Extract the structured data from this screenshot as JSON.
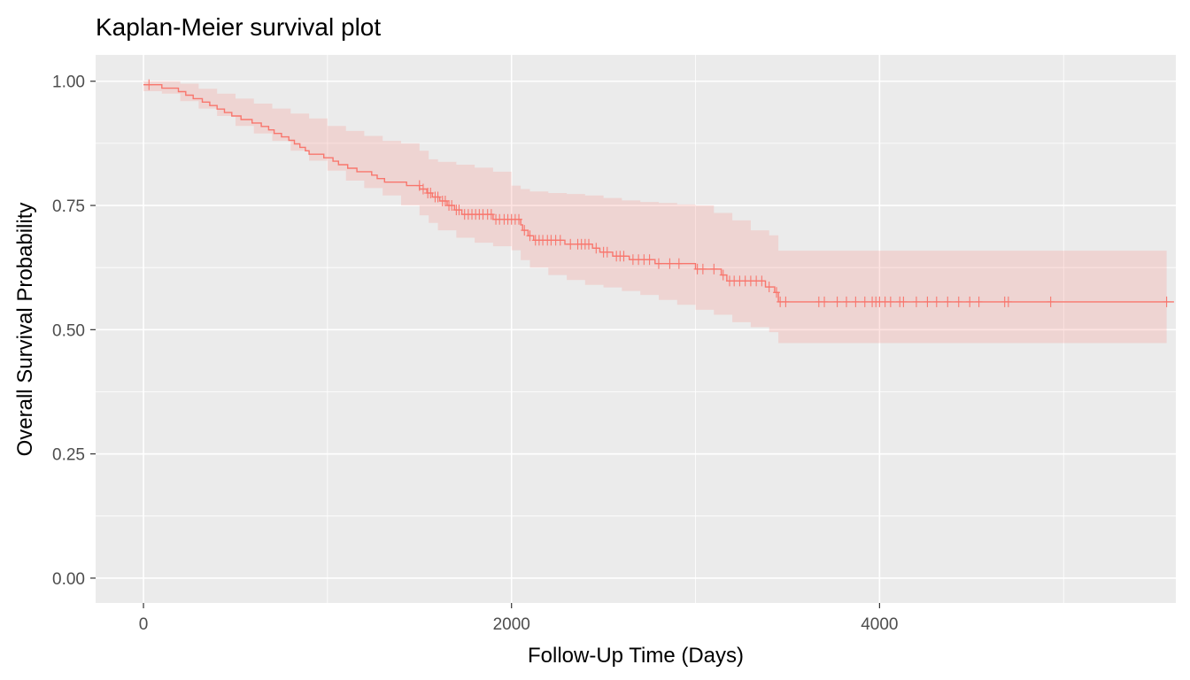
{
  "chart_data": {
    "type": "line",
    "subtype": "kaplan-meier step curve with confidence band and censor marks",
    "title": "Kaplan-Meier survival plot",
    "xlabel": "Follow-Up Time (Days)",
    "ylabel": "Overall Survival Probability",
    "xlim": [
      -260,
      5610
    ],
    "ylim": [
      -0.05,
      1.053
    ],
    "x_ticks": [
      0,
      2000,
      4000
    ],
    "x_tick_labels": [
      "0",
      "2000",
      "4000"
    ],
    "y_ticks": [
      0,
      0.25,
      0.5,
      0.75,
      1.0
    ],
    "y_tick_labels": [
      "0.00",
      "0.25",
      "0.50",
      "0.75",
      "1.00"
    ],
    "grid": true,
    "legend": "none",
    "colors": {
      "panel_background": "#ebebeb",
      "grid_major": "#ffffff",
      "curve": "#f8766d",
      "band": "#f8766d",
      "tick_text": "#4d4d4d"
    },
    "survival_curve": [
      [
        0,
        0.993
      ],
      [
        100,
        0.993
      ],
      [
        100,
        0.986
      ],
      [
        190,
        0.986
      ],
      [
        190,
        0.979
      ],
      [
        230,
        0.979
      ],
      [
        230,
        0.972
      ],
      [
        270,
        0.972
      ],
      [
        270,
        0.965
      ],
      [
        320,
        0.965
      ],
      [
        320,
        0.958
      ],
      [
        360,
        0.958
      ],
      [
        360,
        0.951
      ],
      [
        400,
        0.951
      ],
      [
        400,
        0.944
      ],
      [
        440,
        0.944
      ],
      [
        440,
        0.937
      ],
      [
        480,
        0.937
      ],
      [
        480,
        0.93
      ],
      [
        530,
        0.93
      ],
      [
        530,
        0.923
      ],
      [
        590,
        0.923
      ],
      [
        590,
        0.916
      ],
      [
        640,
        0.916
      ],
      [
        640,
        0.909
      ],
      [
        680,
        0.909
      ],
      [
        680,
        0.902
      ],
      [
        710,
        0.902
      ],
      [
        710,
        0.895
      ],
      [
        750,
        0.895
      ],
      [
        750,
        0.888
      ],
      [
        790,
        0.888
      ],
      [
        790,
        0.881
      ],
      [
        820,
        0.881
      ],
      [
        820,
        0.874
      ],
      [
        850,
        0.874
      ],
      [
        850,
        0.867
      ],
      [
        880,
        0.867
      ],
      [
        880,
        0.86
      ],
      [
        900,
        0.86
      ],
      [
        900,
        0.853
      ],
      [
        980,
        0.853
      ],
      [
        980,
        0.846
      ],
      [
        1030,
        0.846
      ],
      [
        1030,
        0.839
      ],
      [
        1060,
        0.839
      ],
      [
        1060,
        0.832
      ],
      [
        1110,
        0.832
      ],
      [
        1110,
        0.825
      ],
      [
        1160,
        0.825
      ],
      [
        1160,
        0.818
      ],
      [
        1240,
        0.818
      ],
      [
        1240,
        0.811
      ],
      [
        1270,
        0.811
      ],
      [
        1270,
        0.804
      ],
      [
        1310,
        0.804
      ],
      [
        1310,
        0.797
      ],
      [
        1430,
        0.797
      ],
      [
        1430,
        0.79
      ],
      [
        1500,
        0.79
      ],
      [
        1500,
        0.783
      ],
      [
        1540,
        0.783
      ],
      [
        1540,
        0.775
      ],
      [
        1570,
        0.775
      ],
      [
        1570,
        0.767
      ],
      [
        1610,
        0.767
      ],
      [
        1610,
        0.759
      ],
      [
        1650,
        0.759
      ],
      [
        1650,
        0.75
      ],
      [
        1690,
        0.75
      ],
      [
        1690,
        0.741
      ],
      [
        1730,
        0.741
      ],
      [
        1730,
        0.732
      ],
      [
        1900,
        0.732
      ],
      [
        1900,
        0.722
      ],
      [
        2050,
        0.722
      ],
      [
        2050,
        0.711
      ],
      [
        2060,
        0.711
      ],
      [
        2060,
        0.7
      ],
      [
        2090,
        0.7
      ],
      [
        2090,
        0.689
      ],
      [
        2120,
        0.689
      ],
      [
        2120,
        0.68
      ],
      [
        2290,
        0.68
      ],
      [
        2290,
        0.672
      ],
      [
        2440,
        0.672
      ],
      [
        2440,
        0.664
      ],
      [
        2480,
        0.664
      ],
      [
        2480,
        0.656
      ],
      [
        2550,
        0.656
      ],
      [
        2550,
        0.648
      ],
      [
        2640,
        0.648
      ],
      [
        2640,
        0.641
      ],
      [
        2780,
        0.641
      ],
      [
        2780,
        0.633
      ],
      [
        3000,
        0.633
      ],
      [
        3000,
        0.622
      ],
      [
        3140,
        0.622
      ],
      [
        3140,
        0.61
      ],
      [
        3170,
        0.61
      ],
      [
        3170,
        0.598
      ],
      [
        3380,
        0.598
      ],
      [
        3380,
        0.586
      ],
      [
        3430,
        0.586
      ],
      [
        3430,
        0.575
      ],
      [
        3450,
        0.575
      ],
      [
        3450,
        0.556
      ],
      [
        5600,
        0.556
      ]
    ],
    "confidence_band": {
      "x": [
        0,
        100,
        200,
        300,
        400,
        500,
        600,
        700,
        800,
        900,
        1000,
        1100,
        1200,
        1300,
        1400,
        1500,
        1550,
        1600,
        1700,
        1800,
        1900,
        2000,
        2050,
        2100,
        2200,
        2300,
        2400,
        2500,
        2600,
        2700,
        2800,
        2900,
        3000,
        3100,
        3200,
        3300,
        3400,
        3450,
        5560
      ],
      "upper": [
        1.0,
        1.0,
        0.995,
        0.985,
        0.975,
        0.965,
        0.955,
        0.945,
        0.935,
        0.925,
        0.91,
        0.9,
        0.89,
        0.88,
        0.875,
        0.86,
        0.843,
        0.838,
        0.832,
        0.826,
        0.818,
        0.79,
        0.783,
        0.778,
        0.775,
        0.773,
        0.77,
        0.765,
        0.76,
        0.757,
        0.755,
        0.752,
        0.75,
        0.735,
        0.72,
        0.7,
        0.69,
        0.659,
        0.659
      ],
      "lower": [
        0.98,
        0.975,
        0.96,
        0.945,
        0.93,
        0.91,
        0.895,
        0.88,
        0.86,
        0.84,
        0.82,
        0.8,
        0.785,
        0.77,
        0.75,
        0.73,
        0.715,
        0.7,
        0.685,
        0.675,
        0.668,
        0.66,
        0.64,
        0.625,
        0.61,
        0.6,
        0.59,
        0.585,
        0.578,
        0.57,
        0.56,
        0.55,
        0.54,
        0.53,
        0.515,
        0.505,
        0.495,
        0.473,
        0.473
      ]
    },
    "censor_marks": [
      [
        30,
        0.993
      ],
      [
        1500,
        0.79
      ],
      [
        1520,
        0.783
      ],
      [
        1545,
        0.775
      ],
      [
        1560,
        0.775
      ],
      [
        1585,
        0.767
      ],
      [
        1600,
        0.767
      ],
      [
        1625,
        0.759
      ],
      [
        1640,
        0.759
      ],
      [
        1660,
        0.75
      ],
      [
        1675,
        0.75
      ],
      [
        1700,
        0.741
      ],
      [
        1715,
        0.741
      ],
      [
        1745,
        0.732
      ],
      [
        1765,
        0.732
      ],
      [
        1785,
        0.732
      ],
      [
        1805,
        0.732
      ],
      [
        1825,
        0.732
      ],
      [
        1845,
        0.732
      ],
      [
        1870,
        0.732
      ],
      [
        1890,
        0.732
      ],
      [
        1915,
        0.722
      ],
      [
        1935,
        0.722
      ],
      [
        1960,
        0.722
      ],
      [
        1980,
        0.722
      ],
      [
        2000,
        0.722
      ],
      [
        2020,
        0.722
      ],
      [
        2040,
        0.722
      ],
      [
        2070,
        0.7
      ],
      [
        2100,
        0.689
      ],
      [
        2130,
        0.68
      ],
      [
        2150,
        0.68
      ],
      [
        2170,
        0.68
      ],
      [
        2195,
        0.68
      ],
      [
        2215,
        0.68
      ],
      [
        2240,
        0.68
      ],
      [
        2265,
        0.68
      ],
      [
        2320,
        0.672
      ],
      [
        2360,
        0.672
      ],
      [
        2380,
        0.672
      ],
      [
        2400,
        0.672
      ],
      [
        2420,
        0.672
      ],
      [
        2460,
        0.664
      ],
      [
        2500,
        0.656
      ],
      [
        2520,
        0.656
      ],
      [
        2570,
        0.648
      ],
      [
        2590,
        0.648
      ],
      [
        2610,
        0.648
      ],
      [
        2660,
        0.641
      ],
      [
        2690,
        0.641
      ],
      [
        2720,
        0.641
      ],
      [
        2750,
        0.641
      ],
      [
        2800,
        0.633
      ],
      [
        2860,
        0.633
      ],
      [
        2910,
        0.633
      ],
      [
        3010,
        0.622
      ],
      [
        3040,
        0.622
      ],
      [
        3100,
        0.622
      ],
      [
        3150,
        0.61
      ],
      [
        3185,
        0.598
      ],
      [
        3210,
        0.598
      ],
      [
        3240,
        0.598
      ],
      [
        3270,
        0.598
      ],
      [
        3300,
        0.598
      ],
      [
        3330,
        0.598
      ],
      [
        3360,
        0.598
      ],
      [
        3400,
        0.586
      ],
      [
        3440,
        0.575
      ],
      [
        3460,
        0.556
      ],
      [
        3490,
        0.556
      ],
      [
        3670,
        0.556
      ],
      [
        3700,
        0.556
      ],
      [
        3770,
        0.556
      ],
      [
        3820,
        0.556
      ],
      [
        3870,
        0.556
      ],
      [
        3920,
        0.556
      ],
      [
        3960,
        0.556
      ],
      [
        3980,
        0.556
      ],
      [
        4000,
        0.556
      ],
      [
        4030,
        0.556
      ],
      [
        4060,
        0.556
      ],
      [
        4110,
        0.556
      ],
      [
        4130,
        0.556
      ],
      [
        4200,
        0.556
      ],
      [
        4260,
        0.556
      ],
      [
        4310,
        0.556
      ],
      [
        4370,
        0.556
      ],
      [
        4430,
        0.556
      ],
      [
        4490,
        0.556
      ],
      [
        4540,
        0.556
      ],
      [
        4680,
        0.556
      ],
      [
        4700,
        0.556
      ],
      [
        4930,
        0.556
      ],
      [
        5560,
        0.556
      ]
    ]
  }
}
